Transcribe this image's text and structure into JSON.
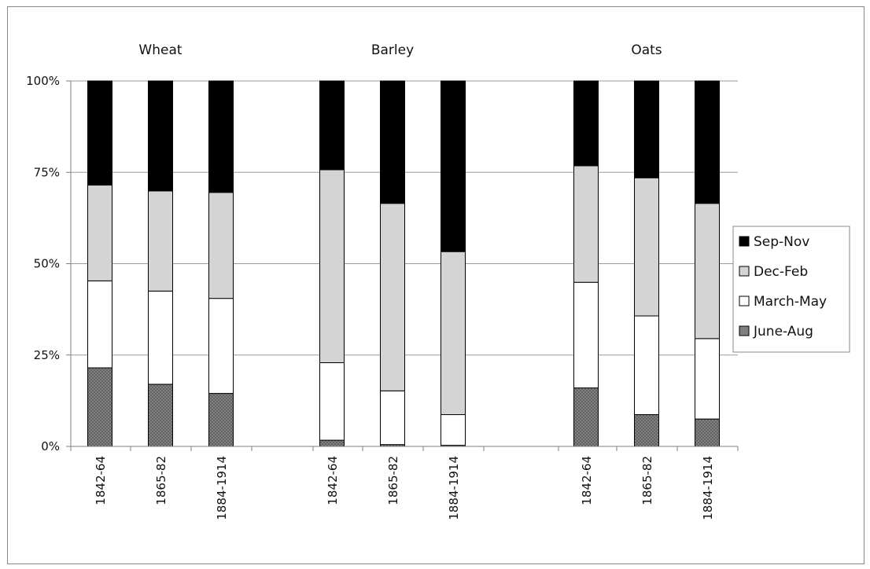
{
  "chart_data": {
    "type": "bar",
    "stacked": true,
    "percent": true,
    "groups": [
      "Wheat",
      "Barley",
      "Oats"
    ],
    "periods": [
      "1842-64",
      "1865-82",
      "1884-1914"
    ],
    "categories": [
      "1842-64",
      "1865-82",
      "1884-1914",
      "1842-64",
      "1865-82",
      "1884-1914",
      "1842-64",
      "1865-82",
      "1884-1914"
    ],
    "series": [
      {
        "name": "June-Aug",
        "color": "#7f7f7f",
        "values": [
          21.5,
          17.0,
          14.5,
          1.7,
          0.5,
          0.3,
          16.0,
          8.7,
          7.5
        ]
      },
      {
        "name": "March-May",
        "color": "#ffffff",
        "values": [
          23.8,
          25.5,
          26.0,
          21.2,
          14.7,
          8.4,
          28.9,
          27.0,
          22.0
        ]
      },
      {
        "name": "Dec-Feb",
        "color": "#d4d4d4",
        "values": [
          26.2,
          27.4,
          29.0,
          52.8,
          51.3,
          44.6,
          31.9,
          37.8,
          37.0
        ]
      },
      {
        "name": "Sep-Nov",
        "color": "#000000",
        "values": [
          28.5,
          30.1,
          30.5,
          24.3,
          33.5,
          46.7,
          23.2,
          26.5,
          33.5
        ]
      }
    ],
    "legend_order": [
      "Sep-Nov",
      "Dec-Feb",
      "March-May",
      "June-Aug"
    ],
    "y_ticks": [
      "0%",
      "25%",
      "50%",
      "75%",
      "100%"
    ],
    "ylim": [
      0,
      100
    ],
    "grid": true,
    "legend_position": "right"
  }
}
